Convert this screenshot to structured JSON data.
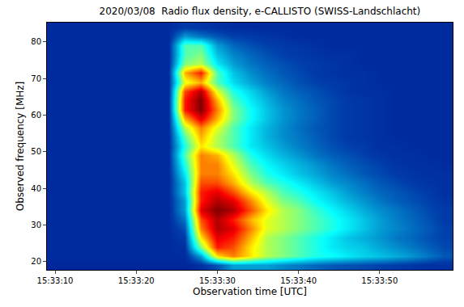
{
  "chart_data": {
    "type": "heatmap",
    "title": "2020/03/08  Radio flux density, e-CALLISTO (SWISS-Landschlacht)",
    "x_label": "Observation time [UTC]",
    "y_label": "Observed frequency [MHz]",
    "x": [
      "15:33:10",
      "15:33:12",
      "15:33:14",
      "15:33:16",
      "15:33:18",
      "15:33:20",
      "15:33:22",
      "15:33:24",
      "15:33:26",
      "15:33:28",
      "15:33:30",
      "15:33:32",
      "15:33:34",
      "15:33:36",
      "15:33:38",
      "15:33:40",
      "15:33:42",
      "15:33:44",
      "15:33:46",
      "15:33:48",
      "15:33:50",
      "15:33:52",
      "15:33:54",
      "15:33:56",
      "15:33:58"
    ],
    "xticks": [
      "15:33:10",
      "15:33:20",
      "15:33:30",
      "15:33:40",
      "15:33:50"
    ],
    "y": [
      19,
      21.5,
      24,
      26.5,
      29,
      31.5,
      34,
      36.5,
      39,
      41.5,
      44,
      46.5,
      49,
      51.5,
      54,
      56.5,
      59,
      61.5,
      64,
      66.5,
      69,
      71.5,
      74,
      76.5,
      79,
      81.5,
      84
    ],
    "ylim": [
      17.75,
      85.25
    ],
    "yticks": [
      20,
      30,
      40,
      50,
      60,
      70,
      80
    ],
    "zlim": [
      0,
      10
    ],
    "grid": false,
    "z": [
      [
        0.8,
        0.8,
        0.8,
        0.8,
        0.8,
        0.8,
        0.8,
        0.8,
        0.8,
        1,
        1.5,
        2.5,
        2.5,
        2.5,
        2.2,
        2,
        1.8,
        1.6,
        1.5,
        1.4,
        1.3,
        1.2,
        1.1,
        1,
        1
      ],
      [
        0.9,
        0.9,
        0.9,
        0.9,
        0.9,
        0.9,
        0.9,
        0.9,
        0.9,
        2.5,
        6.5,
        7.5,
        6.5,
        5.5,
        5,
        4.5,
        4,
        3.8,
        3.5,
        3.2,
        3,
        2.7,
        2.4,
        2,
        1.6
      ],
      [
        0.9,
        0.9,
        0.9,
        0.9,
        0.9,
        0.9,
        0.9,
        0.9,
        1,
        5,
        8.5,
        8,
        6.5,
        5.5,
        5,
        4.5,
        4,
        3.5,
        3.2,
        3,
        2.6,
        2.3,
        2,
        1.7,
        1.4
      ],
      [
        0.9,
        0.9,
        0.9,
        0.9,
        0.9,
        0.9,
        0.9,
        0.9,
        1.2,
        6.5,
        9,
        8.5,
        7,
        5.5,
        5,
        4.5,
        4,
        3.5,
        3,
        2.7,
        2.4,
        2,
        1.8,
        1.5,
        1.3
      ],
      [
        0.9,
        0.9,
        0.9,
        0.9,
        0.9,
        0.9,
        0.9,
        0.9,
        1.5,
        7.5,
        9.5,
        9,
        7.5,
        6,
        5.5,
        5,
        4.5,
        4,
        3.5,
        3,
        2.5,
        2.2,
        1.9,
        1.6,
        1.3
      ],
      [
        0.9,
        0.9,
        0.9,
        0.9,
        0.9,
        0.9,
        0.9,
        0.9,
        2,
        8,
        9.5,
        8.5,
        7,
        6,
        5.5,
        5,
        4.5,
        4,
        3.5,
        3,
        2.5,
        2.1,
        1.8,
        1.5,
        1.2
      ],
      [
        0.9,
        0.9,
        0.9,
        0.9,
        0.9,
        0.9,
        0.9,
        0.9,
        2.5,
        9,
        10,
        9.5,
        8,
        6.5,
        5.5,
        5,
        4.3,
        3.7,
        3.2,
        2.7,
        2.3,
        2,
        1.7,
        1.4,
        1.2
      ],
      [
        0.9,
        0.9,
        0.9,
        0.9,
        0.9,
        0.9,
        0.9,
        0.9,
        2.5,
        8.5,
        9.5,
        9,
        7.5,
        6,
        5,
        4.5,
        3.8,
        3.3,
        2.8,
        2.4,
        2,
        1.7,
        1.5,
        1.3,
        1.1
      ],
      [
        0.9,
        0.9,
        0.9,
        0.9,
        0.9,
        0.9,
        0.9,
        0.9,
        3,
        8.5,
        9,
        8,
        6.5,
        5.5,
        4.5,
        4,
        3.5,
        3,
        2.5,
        2.1,
        1.8,
        1.6,
        1.4,
        1.2,
        1
      ],
      [
        0.9,
        0.9,
        0.9,
        0.9,
        0.9,
        0.9,
        0.9,
        0.9,
        3,
        8,
        8,
        7,
        5.5,
        4.5,
        4,
        3.5,
        3,
        2.5,
        2.2,
        1.9,
        1.6,
        1.4,
        1.2,
        1.1,
        1
      ],
      [
        0.9,
        0.9,
        0.9,
        0.9,
        0.9,
        0.9,
        0.9,
        0.9,
        3.5,
        7.5,
        7.5,
        6.5,
        5,
        4,
        3.5,
        3,
        2.6,
        2.2,
        1.9,
        1.6,
        1.4,
        1.2,
        1.1,
        1,
        1
      ],
      [
        0.9,
        0.9,
        0.9,
        0.9,
        0.9,
        0.9,
        0.9,
        0.9,
        4,
        7.5,
        7.5,
        6,
        4.5,
        3.7,
        3.2,
        2.8,
        2.4,
        2,
        1.7,
        1.5,
        1.3,
        1.1,
        1,
        1,
        0.9
      ],
      [
        0.9,
        0.9,
        0.9,
        0.9,
        0.9,
        0.9,
        0.9,
        0.9,
        4.5,
        7.5,
        7,
        5.5,
        4,
        3.3,
        2.8,
        2.4,
        2,
        1.7,
        1.5,
        1.3,
        1.1,
        1,
        1,
        0.9,
        0.9
      ],
      [
        0.9,
        0.9,
        0.9,
        0.9,
        0.9,
        0.9,
        0.9,
        0.9,
        4,
        6.5,
        5.5,
        4.5,
        3.5,
        3,
        2.5,
        2.1,
        1.8,
        1.5,
        1.3,
        1.2,
        1,
        1,
        0.9,
        0.9,
        0.9
      ],
      [
        0.9,
        0.9,
        0.9,
        0.9,
        0.9,
        0.9,
        0.9,
        0.9,
        4.5,
        7,
        5.5,
        4.5,
        3.5,
        2.8,
        2.3,
        2,
        1.7,
        1.4,
        1.2,
        1.1,
        1,
        0.9,
        0.9,
        0.9,
        0.9
      ],
      [
        0.9,
        0.9,
        0.9,
        0.9,
        0.9,
        0.9,
        0.9,
        0.9,
        5.5,
        7.5,
        6,
        4.5,
        3.5,
        2.8,
        2.3,
        1.9,
        1.6,
        1.4,
        1.2,
        1.1,
        1,
        0.9,
        0.9,
        0.9,
        0.9
      ],
      [
        0.9,
        0.9,
        0.9,
        0.9,
        0.9,
        0.9,
        0.9,
        0.9,
        7,
        9,
        7,
        5,
        3.8,
        3,
        2.4,
        2,
        1.7,
        1.4,
        1.2,
        1.1,
        1,
        0.9,
        0.9,
        0.9,
        0.9
      ],
      [
        0.9,
        0.9,
        0.9,
        0.9,
        0.9,
        0.9,
        0.9,
        0.9,
        8.5,
        10,
        7.5,
        5,
        3.8,
        3,
        2.4,
        2,
        1.7,
        1.4,
        1.2,
        1.1,
        1,
        0.9,
        0.9,
        0.9,
        0.9
      ],
      [
        0.9,
        0.9,
        0.9,
        0.9,
        0.9,
        0.9,
        0.9,
        0.9,
        8.5,
        10,
        7,
        4.5,
        3.5,
        2.8,
        2.2,
        1.9,
        1.6,
        1.4,
        1.2,
        1.1,
        1,
        0.9,
        0.9,
        0.9,
        0.9
      ],
      [
        0.9,
        0.9,
        0.9,
        0.9,
        0.9,
        0.9,
        0.9,
        0.9,
        8,
        9.5,
        6,
        4,
        3.2,
        2.5,
        2,
        1.7,
        1.5,
        1.3,
        1.1,
        1,
        1,
        0.9,
        0.9,
        0.9,
        0.9
      ],
      [
        0.9,
        0.9,
        0.9,
        0.9,
        0.9,
        0.9,
        0.9,
        0.9,
        6,
        7,
        4.5,
        3.3,
        2.6,
        2.1,
        1.8,
        1.5,
        1.3,
        1.2,
        1.1,
        1,
        0.9,
        0.9,
        0.9,
        0.9,
        0.9
      ],
      [
        0.9,
        0.9,
        0.9,
        0.9,
        0.9,
        0.9,
        0.9,
        0.9,
        7,
        8.5,
        4.5,
        3,
        2.3,
        1.9,
        1.6,
        1.4,
        1.2,
        1.1,
        1,
        1,
        0.9,
        0.9,
        0.9,
        0.9,
        0.9
      ],
      [
        0.9,
        0.9,
        0.9,
        0.9,
        0.9,
        0.9,
        0.9,
        0.9,
        5,
        5.5,
        3.5,
        2.5,
        2,
        1.7,
        1.5,
        1.3,
        1.2,
        1.1,
        1,
        0.9,
        0.9,
        0.9,
        0.9,
        0.9,
        0.9
      ],
      [
        0.9,
        0.9,
        0.9,
        0.9,
        0.9,
        0.9,
        0.9,
        0.9,
        4.5,
        5,
        3,
        2.2,
        1.8,
        1.5,
        1.3,
        1.2,
        1.1,
        1,
        1,
        0.9,
        0.9,
        0.9,
        0.9,
        0.9,
        0.9
      ],
      [
        0.9,
        0.9,
        0.9,
        0.9,
        0.9,
        0.9,
        0.9,
        0.9,
        4.5,
        4.5,
        2.5,
        1.8,
        1.5,
        1.3,
        1.2,
        1.1,
        1,
        0.9,
        0.9,
        0.9,
        0.9,
        0.9,
        0.9,
        0.9,
        0.9
      ],
      [
        0.9,
        0.9,
        0.9,
        0.9,
        0.9,
        0.9,
        0.9,
        0.9,
        2.5,
        2,
        1.6,
        1.3,
        1.2,
        1.1,
        1,
        0.9,
        0.9,
        0.9,
        0.9,
        0.9,
        0.9,
        0.9,
        0.9,
        0.9,
        0.9
      ],
      [
        0.9,
        0.9,
        0.9,
        0.9,
        0.9,
        0.9,
        0.9,
        0.9,
        1.2,
        1.1,
        1,
        0.9,
        0.9,
        0.9,
        0.9,
        0.9,
        0.9,
        0.9,
        0.9,
        0.9,
        0.9,
        0.9,
        0.9,
        0.9,
        0.9
      ]
    ]
  }
}
